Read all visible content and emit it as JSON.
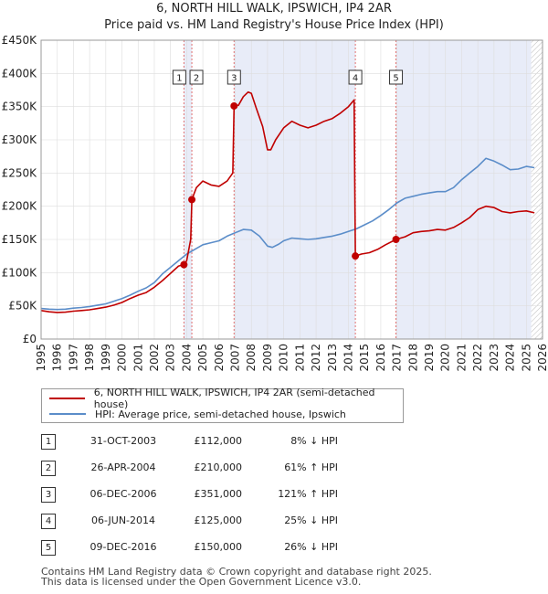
{
  "title_line1": "6, NORTH HILL WALK, IPSWICH, IP4 2AR",
  "title_line2": "Price paid vs. HM Land Registry's House Price Index (HPI)",
  "colors": {
    "property": "#c00000",
    "hpi": "#5b8dc9",
    "band": "#e8ecf8",
    "marker_line": "#e07070"
  },
  "legend": {
    "property": "6, NORTH HILL WALK, IPSWICH, IP4 2AR (semi-detached house)",
    "hpi": "HPI: Average price, semi-detached house, Ipswich"
  },
  "sales": [
    {
      "num": "1",
      "date": "31-OCT-2003",
      "price": "£112,000",
      "hpi": "8% ↓ HPI"
    },
    {
      "num": "2",
      "date": "26-APR-2004",
      "price": "£210,000",
      "hpi": "61% ↑ HPI"
    },
    {
      "num": "3",
      "date": "06-DEC-2006",
      "price": "£351,000",
      "hpi": "121% ↑ HPI"
    },
    {
      "num": "4",
      "date": "06-JUN-2014",
      "price": "£125,000",
      "hpi": "25% ↓ HPI"
    },
    {
      "num": "5",
      "date": "09-DEC-2016",
      "price": "£150,000",
      "hpi": "26% ↓ HPI"
    }
  ],
  "footer_line1": "Contains HM Land Registry data © Crown copyright and database right 2025.",
  "footer_line2": "This data is licensed under the Open Government Licence v3.0.",
  "chart_data": {
    "type": "line",
    "title": "6, NORTH HILL WALK, IPSWICH, IP4 2AR",
    "subtitle": "Price paid vs. HM Land Registry's House Price Index (HPI)",
    "xlim": [
      1995,
      2026
    ],
    "ylim": [
      0,
      450000
    ],
    "x_ticks": [
      1995,
      1996,
      1997,
      1998,
      1999,
      2000,
      2001,
      2002,
      2003,
      2004,
      2005,
      2006,
      2007,
      2008,
      2009,
      2010,
      2011,
      2012,
      2013,
      2014,
      2015,
      2016,
      2017,
      2018,
      2019,
      2020,
      2021,
      2022,
      2023,
      2024,
      2025,
      2026
    ],
    "y_ticks": [
      {
        "value": 0,
        "label": "£0"
      },
      {
        "value": 50000,
        "label": "£50K"
      },
      {
        "value": 100000,
        "label": "£100K"
      },
      {
        "value": 150000,
        "label": "£150K"
      },
      {
        "value": 200000,
        "label": "£200K"
      },
      {
        "value": 250000,
        "label": "£250K"
      },
      {
        "value": 300000,
        "label": "£300K"
      },
      {
        "value": 350000,
        "label": "£350K"
      },
      {
        "value": 400000,
        "label": "£400K"
      },
      {
        "value": 450000,
        "label": "£450K"
      }
    ],
    "shaded_bands": [
      [
        2003.83,
        2004.32
      ],
      [
        2006.93,
        2014.43
      ],
      [
        2016.94,
        2025.3
      ]
    ],
    "future_hatch_from": 2025.3,
    "sale_markers": [
      {
        "label": "1",
        "x": 2003.83,
        "y": 112000
      },
      {
        "label": "2",
        "x": 2004.32,
        "y": 210000
      },
      {
        "label": "3",
        "x": 2006.93,
        "y": 351000
      },
      {
        "label": "4",
        "x": 2014.43,
        "y": 125000
      },
      {
        "label": "5",
        "x": 2016.94,
        "y": 150000
      }
    ],
    "series": [
      {
        "name": "6, NORTH HILL WALK, IPSWICH, IP4 2AR (semi-detached house)",
        "color": "#c00000",
        "points": [
          [
            1995,
            43000
          ],
          [
            1995.5,
            41000
          ],
          [
            1996,
            40000
          ],
          [
            1996.5,
            40500
          ],
          [
            1997,
            42000
          ],
          [
            1997.5,
            43000
          ],
          [
            1998,
            44000
          ],
          [
            1998.5,
            46000
          ],
          [
            1999,
            48000
          ],
          [
            1999.5,
            51000
          ],
          [
            2000,
            55000
          ],
          [
            2000.5,
            61000
          ],
          [
            2001,
            66000
          ],
          [
            2001.5,
            70000
          ],
          [
            2002,
            78000
          ],
          [
            2002.5,
            88000
          ],
          [
            2003,
            99000
          ],
          [
            2003.5,
            110000
          ],
          [
            2003.83,
            112000
          ],
          [
            2004.0,
            118000
          ],
          [
            2004.25,
            150000
          ],
          [
            2004.32,
            210000
          ],
          [
            2004.6,
            228000
          ],
          [
            2005,
            238000
          ],
          [
            2005.5,
            232000
          ],
          [
            2006,
            230000
          ],
          [
            2006.5,
            238000
          ],
          [
            2006.85,
            250000
          ],
          [
            2006.93,
            351000
          ],
          [
            2007.2,
            352000
          ],
          [
            2007.5,
            365000
          ],
          [
            2007.8,
            372000
          ],
          [
            2008,
            370000
          ],
          [
            2008.3,
            348000
          ],
          [
            2008.7,
            320000
          ],
          [
            2009,
            285000
          ],
          [
            2009.2,
            285000
          ],
          [
            2009.5,
            300000
          ],
          [
            2010,
            318000
          ],
          [
            2010.5,
            328000
          ],
          [
            2011,
            322000
          ],
          [
            2011.5,
            318000
          ],
          [
            2012,
            322000
          ],
          [
            2012.5,
            328000
          ],
          [
            2013,
            332000
          ],
          [
            2013.5,
            340000
          ],
          [
            2014,
            350000
          ],
          [
            2014.35,
            360000
          ],
          [
            2014.43,
            125000
          ],
          [
            2014.8,
            128000
          ],
          [
            2015.3,
            130000
          ],
          [
            2015.8,
            135000
          ],
          [
            2016.3,
            142000
          ],
          [
            2016.94,
            150000
          ],
          [
            2017.5,
            154000
          ],
          [
            2018,
            160000
          ],
          [
            2018.5,
            162000
          ],
          [
            2019,
            163000
          ],
          [
            2019.5,
            165000
          ],
          [
            2020,
            164000
          ],
          [
            2020.5,
            168000
          ],
          [
            2021,
            175000
          ],
          [
            2021.5,
            183000
          ],
          [
            2022,
            195000
          ],
          [
            2022.5,
            200000
          ],
          [
            2023,
            198000
          ],
          [
            2023.5,
            192000
          ],
          [
            2024,
            190000
          ],
          [
            2024.5,
            192000
          ],
          [
            2025,
            193000
          ],
          [
            2025.5,
            190000
          ]
        ]
      },
      {
        "name": "HPI: Average price, semi-detached house, Ipswich",
        "color": "#5b8dc9",
        "points": [
          [
            1995,
            46000
          ],
          [
            1995.5,
            45000
          ],
          [
            1996,
            44500
          ],
          [
            1996.5,
            45000
          ],
          [
            1997,
            46500
          ],
          [
            1997.5,
            47500
          ],
          [
            1998,
            49000
          ],
          [
            1998.5,
            51000
          ],
          [
            1999,
            53000
          ],
          [
            1999.5,
            57000
          ],
          [
            2000,
            61000
          ],
          [
            2000.5,
            66000
          ],
          [
            2001,
            72000
          ],
          [
            2001.5,
            77000
          ],
          [
            2002,
            85000
          ],
          [
            2002.5,
            98000
          ],
          [
            2003,
            108000
          ],
          [
            2003.5,
            118000
          ],
          [
            2004,
            128000
          ],
          [
            2004.5,
            135000
          ],
          [
            2005,
            142000
          ],
          [
            2005.5,
            145000
          ],
          [
            2006,
            148000
          ],
          [
            2006.5,
            155000
          ],
          [
            2007,
            160000
          ],
          [
            2007.5,
            165000
          ],
          [
            2008,
            164000
          ],
          [
            2008.5,
            155000
          ],
          [
            2009,
            140000
          ],
          [
            2009.3,
            138000
          ],
          [
            2009.7,
            143000
          ],
          [
            2010,
            148000
          ],
          [
            2010.5,
            152000
          ],
          [
            2011,
            151000
          ],
          [
            2011.5,
            150000
          ],
          [
            2012,
            151000
          ],
          [
            2012.5,
            153000
          ],
          [
            2013,
            155000
          ],
          [
            2013.5,
            158000
          ],
          [
            2014,
            162000
          ],
          [
            2014.5,
            166000
          ],
          [
            2015,
            172000
          ],
          [
            2015.5,
            178000
          ],
          [
            2016,
            186000
          ],
          [
            2016.5,
            195000
          ],
          [
            2017,
            205000
          ],
          [
            2017.5,
            212000
          ],
          [
            2018,
            215000
          ],
          [
            2018.5,
            218000
          ],
          [
            2019,
            220000
          ],
          [
            2019.5,
            222000
          ],
          [
            2020,
            222000
          ],
          [
            2020.5,
            228000
          ],
          [
            2021,
            240000
          ],
          [
            2021.5,
            250000
          ],
          [
            2022,
            260000
          ],
          [
            2022.5,
            272000
          ],
          [
            2023,
            268000
          ],
          [
            2023.5,
            262000
          ],
          [
            2024,
            255000
          ],
          [
            2024.5,
            256000
          ],
          [
            2025,
            260000
          ],
          [
            2025.5,
            258000
          ]
        ]
      }
    ]
  }
}
